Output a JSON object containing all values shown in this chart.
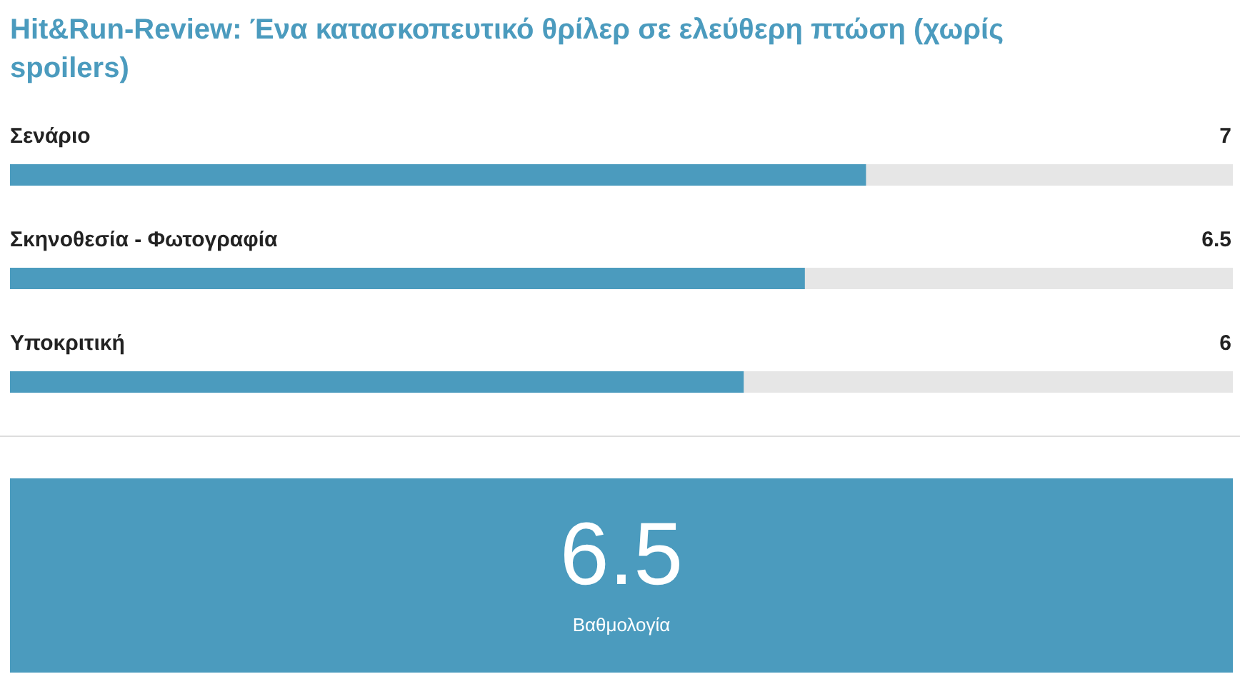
{
  "chart_data": [
    {
      "type": "bar",
      "orientation": "horizontal",
      "title": "Hit&Run-Review: Ένα κατασκοπευτικό θρίλερ σε ελεύθερη πτώση (χωρίς spoilers)",
      "categories": [
        "Σενάριο",
        "Σκηνοθεσία - Φωτογραφία",
        "Υποκριτική"
      ],
      "values": [
        7,
        6.5,
        6
      ],
      "color": "#4b9bbe",
      "xlim": [
        0,
        10
      ],
      "data_labels": true
    },
    {
      "type": "other",
      "annotations": [
        "6.5",
        "Βαθμολογία"
      ]
    }
  ]
}
